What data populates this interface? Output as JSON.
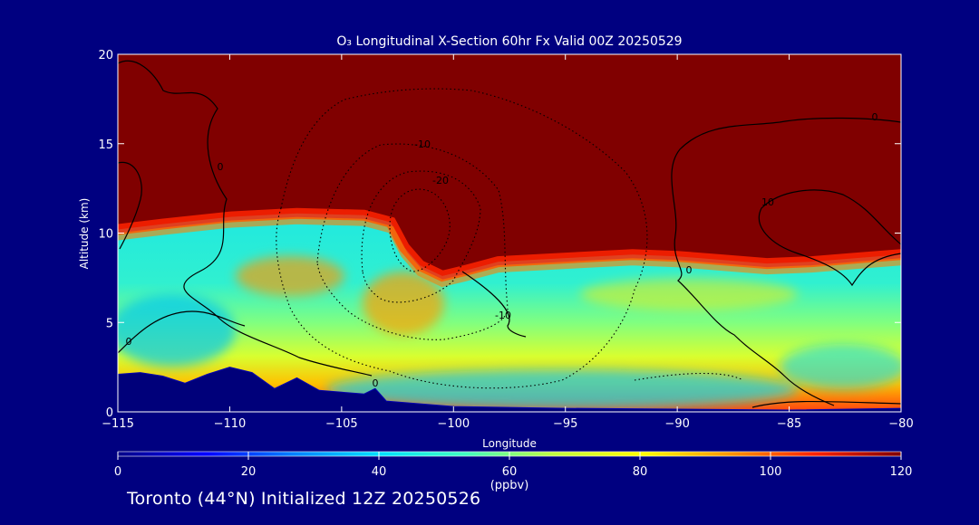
{
  "page": {
    "background": "#000080",
    "footer": "Toronto (44°N) Initialized 12Z 20250526"
  },
  "chart_data": {
    "type": "heatmap",
    "title": "O₃ Longitudinal X-Section 60hr  Fx Valid 00Z 20250529",
    "xlabel": "Longitude",
    "ylabel": "Altitude (km)",
    "xlim": [
      -115,
      -80
    ],
    "ylim": [
      0,
      20
    ],
    "xticks": [
      -115,
      -110,
      -105,
      -100,
      -95,
      -90,
      -85,
      -80
    ],
    "xtick_labels": [
      "−115",
      "−110",
      "−105",
      "−100",
      "−95",
      "−90",
      "−85",
      "−80"
    ],
    "yticks": [
      0,
      5,
      10,
      15,
      20
    ],
    "ytick_labels": [
      "0",
      "5",
      "10",
      "15",
      "20"
    ],
    "colorbar": {
      "label": "(ppbv)",
      "min": 0,
      "max": 120,
      "ticks": [
        0,
        20,
        40,
        60,
        80,
        100,
        120
      ],
      "tick_labels": [
        "0",
        "20",
        "40",
        "60",
        "80",
        "100",
        "120"
      ],
      "colors": [
        "#000088",
        "#0000ff",
        "#0080ff",
        "#00e0ff",
        "#40ffc0",
        "#c0ff40",
        "#ffff00",
        "#ff9900",
        "#ff2200",
        "#800000"
      ]
    },
    "tropopause_km": [
      [
        -115,
        10.2
      ],
      [
        -113,
        10.5
      ],
      [
        -110,
        10.9
      ],
      [
        -107,
        11.1
      ],
      [
        -104,
        11.0
      ],
      [
        -102.8,
        10.6
      ],
      [
        -102.2,
        9.2
      ],
      [
        -101.5,
        8.2
      ],
      [
        -100.5,
        7.6
      ],
      [
        -99.5,
        7.9
      ],
      [
        -98,
        8.4
      ],
      [
        -95,
        8.6
      ],
      [
        -92,
        8.8
      ],
      [
        -90,
        8.7
      ],
      [
        -88,
        8.5
      ],
      [
        -86,
        8.3
      ],
      [
        -84,
        8.4
      ],
      [
        -82,
        8.6
      ],
      [
        -80,
        8.8
      ]
    ],
    "terrain_km": [
      [
        -115,
        2.1
      ],
      [
        -114,
        2.2
      ],
      [
        -113,
        2.0
      ],
      [
        -112,
        1.6
      ],
      [
        -111,
        2.1
      ],
      [
        -110,
        2.5
      ],
      [
        -109,
        2.2
      ],
      [
        -108,
        1.3
      ],
      [
        -107,
        1.9
      ],
      [
        -106,
        1.2
      ],
      [
        -105,
        1.1
      ],
      [
        -104,
        1.0
      ],
      [
        -103.5,
        1.3
      ],
      [
        -103,
        0.6
      ],
      [
        -100,
        0.3
      ],
      [
        -95,
        0.2
      ],
      [
        -90,
        0.15
      ],
      [
        -85,
        0.1
      ],
      [
        -80,
        0.2
      ]
    ],
    "contour_labels": [
      "0",
      "0",
      "0",
      "0",
      "0",
      "-10",
      "-20",
      "-10",
      "10"
    ]
  }
}
